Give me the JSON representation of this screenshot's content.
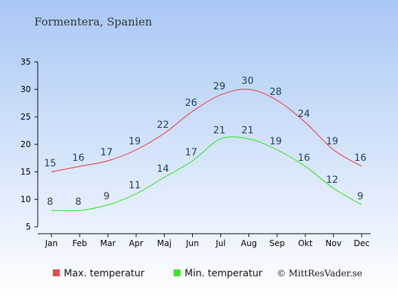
{
  "title": "Formentera, Spanien",
  "credit": "© MittResVader.se",
  "colors": {
    "max": "#e84a4a",
    "min": "#3be62e",
    "bg_top": "#a9c8f5",
    "bg_bottom": "#ffffff",
    "label": "#1f3a5f"
  },
  "chart_data": {
    "type": "line",
    "categories": [
      "Jan",
      "Feb",
      "Mar",
      "Apr",
      "Maj",
      "Jun",
      "Jul",
      "Aug",
      "Sep",
      "Okt",
      "Nov",
      "Dec"
    ],
    "series": [
      {
        "name": "Max. temperatur",
        "values": [
          15,
          16,
          17,
          19,
          22,
          26,
          29,
          30,
          28,
          24,
          19,
          16
        ]
      },
      {
        "name": "Min. temperatur",
        "values": [
          8,
          8,
          9,
          11,
          14,
          17,
          21,
          21,
          19,
          16,
          12,
          9
        ]
      }
    ],
    "y_ticks": [
      5,
      10,
      15,
      20,
      25,
      30,
      35
    ],
    "ylim": [
      5,
      35
    ],
    "grid": false,
    "legend_position": "bottom"
  }
}
